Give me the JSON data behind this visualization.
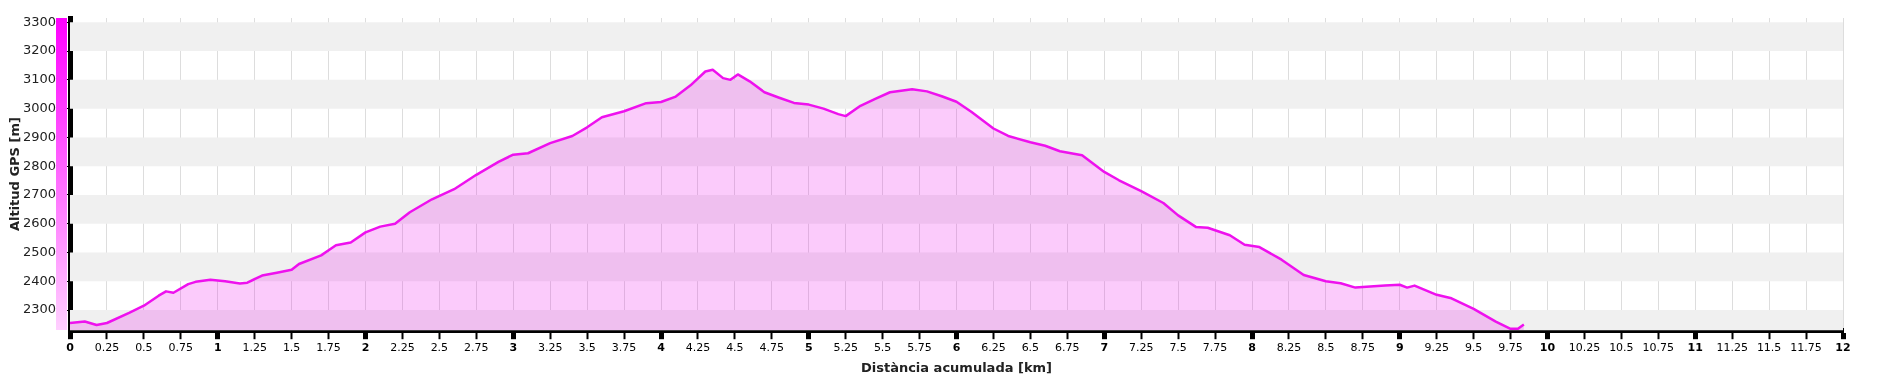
{
  "chart_data": {
    "type": "area",
    "xlabel": "Distància acumulada [km]",
    "ylabel": "Altitud GPS [m]",
    "xlim": [
      0,
      12
    ],
    "ylim": [
      2230,
      3315
    ],
    "xticks": [
      0,
      0.25,
      0.5,
      0.75,
      1,
      1.25,
      1.5,
      1.75,
      2,
      2.25,
      2.5,
      2.75,
      3,
      3.25,
      3.5,
      3.75,
      4,
      4.25,
      4.5,
      4.75,
      5,
      5.25,
      5.5,
      5.75,
      6,
      6.25,
      6.5,
      6.75,
      7,
      7.25,
      7.5,
      7.75,
      8,
      8.25,
      8.5,
      8.75,
      9,
      9.25,
      9.5,
      9.75,
      10,
      10.25,
      10.5,
      10.75,
      11,
      11.25,
      11.5,
      11.75,
      12
    ],
    "yticks": [
      2300,
      2400,
      2500,
      2600,
      2700,
      2800,
      2900,
      3000,
      3100,
      3200,
      3300
    ],
    "grid": true,
    "legend": false,
    "marker": "none",
    "line_style": "solid",
    "series": [
      {
        "color": "#ee11ee",
        "x": [
          0,
          0.1,
          0.18,
          0.25,
          0.4,
          0.5,
          0.6,
          0.65,
          0.7,
          0.8,
          0.85,
          0.95,
          1.05,
          1.15,
          1.2,
          1.3,
          1.4,
          1.5,
          1.55,
          1.7,
          1.8,
          1.9,
          2,
          2.1,
          2.2,
          2.3,
          2.45,
          2.6,
          2.75,
          2.9,
          3,
          3.1,
          3.25,
          3.4,
          3.5,
          3.6,
          3.75,
          3.9,
          4,
          4.1,
          4.2,
          4.3,
          4.35,
          4.42,
          4.47,
          4.52,
          4.6,
          4.7,
          4.8,
          4.9,
          5,
          5.1,
          5.2,
          5.25,
          5.35,
          5.45,
          5.55,
          5.7,
          5.8,
          5.9,
          6,
          6.1,
          6.25,
          6.35,
          6.5,
          6.6,
          6.7,
          6.85,
          7,
          7.1,
          7.25,
          7.4,
          7.5,
          7.62,
          7.7,
          7.85,
          7.95,
          8.05,
          8.2,
          8.35,
          8.5,
          8.6,
          8.7,
          8.9,
          9,
          9.05,
          9.1,
          9.25,
          9.35,
          9.5,
          9.65,
          9.75,
          9.8,
          9.84
        ],
        "values": [
          2255,
          2260,
          2248,
          2255,
          2290,
          2315,
          2350,
          2365,
          2360,
          2390,
          2398,
          2405,
          2400,
          2392,
          2395,
          2420,
          2430,
          2440,
          2460,
          2490,
          2525,
          2535,
          2570,
          2590,
          2600,
          2640,
          2685,
          2720,
          2770,
          2815,
          2840,
          2845,
          2880,
          2905,
          2935,
          2970,
          2991,
          3019,
          3023,
          3042,
          3081,
          3129,
          3135,
          3106,
          3100,
          3119,
          3095,
          3057,
          3038,
          3020,
          3014,
          3000,
          2981,
          2974,
          3010,
          3034,
          3057,
          3067,
          3060,
          3043,
          3024,
          2989,
          2931,
          2905,
          2883,
          2871,
          2852,
          2838,
          2780,
          2751,
          2713,
          2672,
          2629,
          2589,
          2586,
          2560,
          2527,
          2519,
          2475,
          2422,
          2400,
          2393,
          2378,
          2385,
          2388,
          2378,
          2385,
          2353,
          2341,
          2304,
          2260,
          2235,
          2235,
          2250
        ]
      }
    ]
  }
}
